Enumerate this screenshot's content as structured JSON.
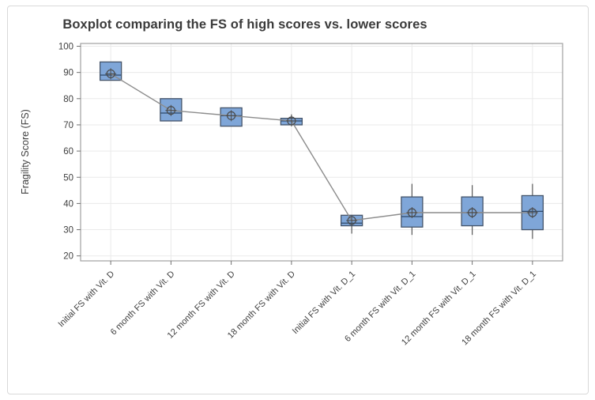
{
  "window": {
    "kind": "statistical-software-graph-window"
  },
  "chart_data": {
    "type": "boxplot",
    "title": "Boxplot comparing the FS of high scores vs. lower scores",
    "xlabel": "",
    "ylabel": "Fragility Score (FS)",
    "ylim": [
      20,
      100
    ],
    "yticks": [
      100,
      90,
      80,
      70,
      60,
      50,
      40,
      30,
      20
    ],
    "grid": "light gray horizontal gridlines at each y tick and vertical gridlines at each category",
    "legend_position": "none",
    "categories": [
      "Initial FS with Vit. D",
      "6 month FS with Vit. D",
      "12 month FS with Vit. D",
      "18 month FS with Vit. D",
      "Initial FS with Vit. D_1",
      "6 month FS with Vit. D_1",
      "12 month FS with Vit. D_1",
      "18 month FS with Vit. D_1"
    ],
    "series": [
      {
        "name": "Fragility Score boxplots",
        "boxes": [
          {
            "q1": 87.0,
            "median": 89.0,
            "q3": 94.0,
            "whisker_low": null,
            "whisker_high": null,
            "mean": 89.5
          },
          {
            "q1": 71.5,
            "median": 74.5,
            "q3": 80.0,
            "whisker_low": null,
            "whisker_high": null,
            "mean": 75.5
          },
          {
            "q1": 69.5,
            "median": 73.5,
            "q3": 76.5,
            "whisker_low": null,
            "whisker_high": null,
            "mean": 73.5
          },
          {
            "q1": 70.0,
            "median": 71.5,
            "q3": 72.5,
            "whisker_low": null,
            "whisker_high": 74.0,
            "mean": 71.5
          },
          {
            "q1": 31.5,
            "median": 32.5,
            "q3": 35.5,
            "whisker_low": 28.5,
            "whisker_high": null,
            "mean": 33.5
          },
          {
            "q1": 31.0,
            "median": 35.0,
            "q3": 42.5,
            "whisker_low": 28.0,
            "whisker_high": 47.5,
            "mean": 36.5
          },
          {
            "q1": 31.5,
            "median": 36.5,
            "q3": 42.5,
            "whisker_low": 28.0,
            "whisker_high": 47.0,
            "mean": 36.5
          },
          {
            "q1": 30.0,
            "median": 37.0,
            "q3": 43.0,
            "whisker_low": 26.5,
            "whisker_high": 47.5,
            "mean": 36.5
          }
        ]
      }
    ],
    "mean_connector": {
      "connects": "mean markers of consecutive boxes",
      "values": [
        89.5,
        75.5,
        73.5,
        71.5,
        33.5,
        36.5,
        36.5,
        36.5
      ]
    },
    "mean_marker": "circle-with-crosshair"
  },
  "colors": {
    "box_fill": "#7FA6D8",
    "box_border": "#44546A",
    "median_line": "#2F4A6B",
    "whisker": "#595959",
    "mean_symbol": "#4A4A4A",
    "connector_line": "#8C8C8C",
    "gridline": "#EAEAEA",
    "plot_border": "#A0A0A0",
    "tick_mark": "#707070",
    "axis_text": "#3F3F3F",
    "title_text": "#3A3A3A",
    "figure_border": "#D9D9D9",
    "background": "#FFFFFF"
  }
}
